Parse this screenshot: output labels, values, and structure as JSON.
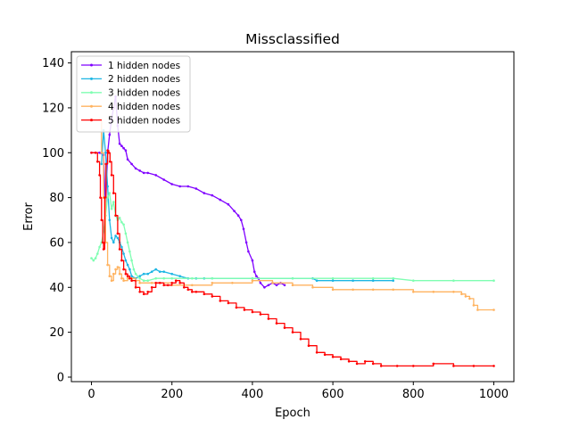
{
  "chart_data": {
    "type": "line",
    "title": "Missclassified",
    "xlabel": "Epoch",
    "ylabel": "Error",
    "xlim": [
      -50,
      1050
    ],
    "ylim": [
      -2,
      145
    ],
    "xticks": [
      0,
      200,
      400,
      600,
      800,
      1000
    ],
    "yticks": [
      0,
      20,
      40,
      60,
      80,
      100,
      120,
      140
    ],
    "grid": false,
    "legend_position": "top-left",
    "series": [
      {
        "name": "1 hidden nodes",
        "color": "#7f00ff",
        "step": false,
        "x": [
          0,
          10,
          20,
          30,
          35,
          40,
          45,
          50,
          55,
          60,
          65,
          70,
          75,
          80,
          85,
          90,
          100,
          110,
          120,
          130,
          140,
          160,
          180,
          200,
          220,
          240,
          260,
          280,
          300,
          320,
          340,
          355,
          365,
          372,
          378,
          385,
          390,
          400,
          405,
          410,
          415,
          420,
          430,
          440,
          450,
          460,
          470,
          480
        ],
        "y": [
          100,
          100,
          100,
          99,
          75,
          100,
          108,
          115,
          120,
          125,
          112,
          104,
          103,
          102,
          101,
          97,
          95,
          93,
          92,
          91,
          91,
          90,
          88,
          86,
          85,
          85,
          84,
          82,
          81,
          79,
          77,
          74,
          72,
          70,
          66,
          60,
          56,
          52,
          47,
          45,
          44,
          42,
          40,
          41,
          42,
          41,
          42,
          41
        ]
      },
      {
        "name": "2 hidden nodes",
        "color": "#1db6e4",
        "step": false,
        "x": [
          25,
          30,
          35,
          40,
          45,
          50,
          55,
          60,
          65,
          70,
          75,
          80,
          85,
          90,
          95,
          100,
          110,
          120,
          130,
          140,
          150,
          160,
          170,
          180,
          200,
          220,
          240,
          260,
          280,
          300,
          400,
          500,
          550,
          560,
          600,
          650,
          700,
          750
        ],
        "y": [
          95,
          110,
          100,
          85,
          70,
          62,
          60,
          63,
          62,
          60,
          58,
          55,
          52,
          50,
          48,
          45,
          44,
          45,
          46,
          46,
          47,
          48,
          47,
          47,
          46,
          45,
          44,
          44,
          44,
          44,
          44,
          44,
          44,
          43,
          43,
          43,
          43,
          43
        ]
      },
      {
        "name": "3 hidden nodes",
        "color": "#7ffeb2",
        "step": false,
        "x": [
          0,
          5,
          10,
          15,
          20,
          25,
          30,
          35,
          40,
          45,
          50,
          55,
          60,
          65,
          70,
          75,
          80,
          85,
          90,
          95,
          100,
          105,
          110,
          120,
          130,
          140,
          160,
          180,
          200,
          250,
          300,
          400,
          500,
          600,
          700,
          750,
          800,
          900,
          1000
        ],
        "y": [
          53,
          52,
          53,
          55,
          58,
          60,
          65,
          72,
          80,
          82,
          75,
          78,
          72,
          70,
          71,
          69,
          68,
          64,
          60,
          56,
          52,
          48,
          46,
          44,
          43,
          43,
          44,
          44,
          44,
          44,
          44,
          44,
          44,
          44,
          44,
          44,
          43,
          43,
          43
        ]
      },
      {
        "name": "4 hidden nodes",
        "color": "#ffb360",
        "step": true,
        "x": [
          20,
          25,
          30,
          35,
          40,
          45,
          50,
          55,
          60,
          65,
          70,
          75,
          80,
          90,
          100,
          110,
          120,
          150,
          200,
          250,
          300,
          350,
          400,
          450,
          500,
          550,
          600,
          650,
          700,
          750,
          800,
          850,
          900,
          920,
          930,
          940,
          950,
          960,
          1000
        ],
        "y": [
          115,
          100,
          80,
          60,
          50,
          45,
          43,
          46,
          48,
          49,
          46,
          44,
          43,
          44,
          44,
          43,
          42,
          42,
          41,
          41,
          42,
          42,
          43,
          42,
          41,
          40,
          39,
          39,
          39,
          39,
          38,
          38,
          38,
          37,
          36,
          35,
          32,
          30,
          30
        ]
      },
      {
        "name": "5 hidden nodes",
        "color": "#ff0000",
        "step": true,
        "x": [
          0,
          10,
          15,
          20,
          22,
          25,
          28,
          30,
          33,
          36,
          40,
          43,
          46,
          50,
          55,
          60,
          65,
          70,
          75,
          80,
          85,
          90,
          95,
          100,
          110,
          120,
          130,
          140,
          150,
          160,
          170,
          180,
          190,
          200,
          210,
          220,
          230,
          240,
          250,
          260,
          280,
          300,
          320,
          340,
          360,
          380,
          400,
          420,
          440,
          460,
          480,
          500,
          520,
          540,
          560,
          580,
          600,
          620,
          640,
          660,
          680,
          700,
          720,
          760,
          800,
          850,
          900,
          950,
          1000
        ],
        "y": [
          100,
          100,
          96,
          90,
          80,
          70,
          60,
          57,
          80,
          95,
          101,
          100,
          96,
          90,
          82,
          72,
          64,
          57,
          52,
          48,
          46,
          45,
          44,
          43,
          40,
          38,
          37,
          38,
          40,
          42,
          42,
          41,
          41,
          42,
          43,
          42,
          40,
          39,
          38,
          38,
          37,
          36,
          34,
          33,
          31,
          30,
          29,
          28,
          26,
          24,
          22,
          20,
          17,
          14,
          11,
          10,
          9,
          8,
          7,
          6,
          7,
          6,
          5,
          5,
          5,
          6,
          5,
          5,
          5
        ]
      }
    ]
  }
}
